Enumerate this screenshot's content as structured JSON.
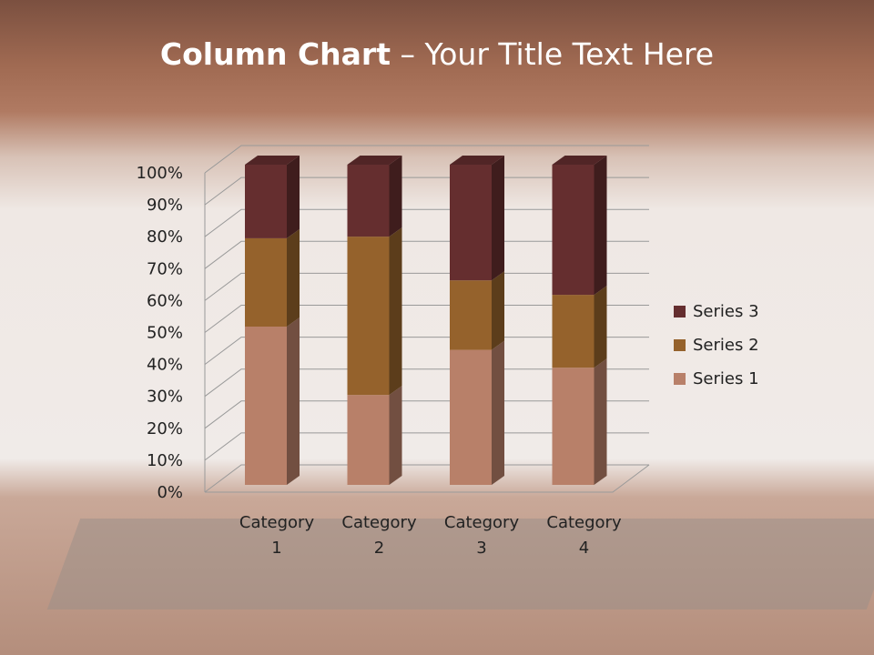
{
  "title": {
    "bold": "Column Chart",
    "rest": " – Your Title Text Here"
  },
  "chart_data": {
    "type": "bar",
    "stacking": "percent",
    "style": "3d-column",
    "categories": [
      "Category 1",
      "Category 2",
      "Category 3",
      "Category 4"
    ],
    "series": [
      {
        "name": "Series 1",
        "values": [
          4.3,
          2.5,
          3.5,
          4.5
        ],
        "color": "#B88069"
      },
      {
        "name": "Series 2",
        "values": [
          2.4,
          4.4,
          1.8,
          2.8
        ],
        "color": "#95622C"
      },
      {
        "name": "Series 3",
        "values": [
          2,
          2,
          3,
          5
        ],
        "color": "#652E2F"
      }
    ],
    "yticks": [
      "0%",
      "10%",
      "20%",
      "30%",
      "40%",
      "50%",
      "60%",
      "70%",
      "80%",
      "90%",
      "100%"
    ],
    "ylim": [
      0,
      100
    ],
    "grid": true,
    "legend": "right"
  }
}
